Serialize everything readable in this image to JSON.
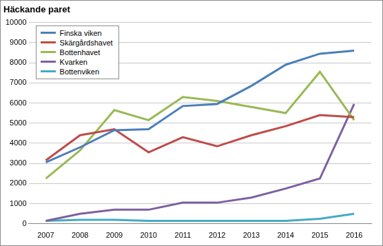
{
  "chart_data": {
    "type": "line",
    "title": "Häckande paret",
    "categories": [
      "2007",
      "2008",
      "2009",
      "2010",
      "2011",
      "2012",
      "2013",
      "2014",
      "2015",
      "2016"
    ],
    "series": [
      {
        "name": "Finska viken",
        "color": "#4a7ebb",
        "values": [
          3050,
          3800,
          4650,
          4700,
          5850,
          5950,
          6850,
          7900,
          8450,
          8600
        ]
      },
      {
        "name": "Skärgårdshavet",
        "color": "#be4b48",
        "values": [
          3150,
          4400,
          4700,
          3550,
          4300,
          3850,
          4400,
          4850,
          5400,
          5300
        ]
      },
      {
        "name": "Bottenhavet",
        "color": "#98b954",
        "values": [
          2250,
          3650,
          5650,
          5150,
          6300,
          6100,
          5800,
          5500,
          7550,
          5150
        ]
      },
      {
        "name": "Kvarken",
        "color": "#7d60a0",
        "values": [
          150,
          500,
          700,
          700,
          1050,
          1050,
          1300,
          1750,
          2250,
          5950
        ]
      },
      {
        "name": "Bottenviken",
        "color": "#46aac5",
        "values": [
          150,
          200,
          200,
          150,
          150,
          150,
          150,
          150,
          250,
          500
        ]
      }
    ],
    "ylim": [
      0,
      10000
    ],
    "yticks": [
      0,
      1000,
      2000,
      3000,
      4000,
      5000,
      6000,
      7000,
      8000,
      9000,
      10000
    ],
    "grid": true,
    "legend": "top-left"
  }
}
